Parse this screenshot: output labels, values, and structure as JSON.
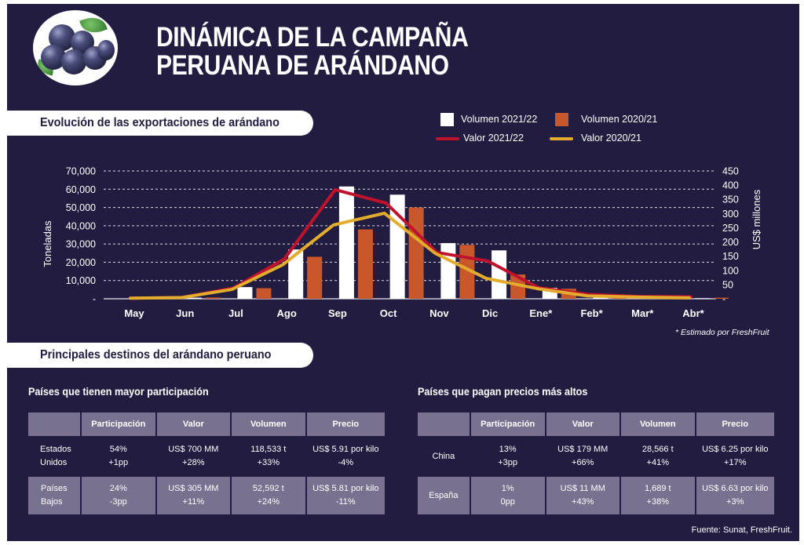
{
  "header": {
    "title_line1": "DINÁMICA DE LA CAMPAÑA",
    "title_line2": "PERUANA DE ARÁNDANO",
    "image": "blueberries-icon"
  },
  "section1": {
    "title": "Evolución de las exportaciones de arándano"
  },
  "colors": {
    "background": "#221c41",
    "vol_2122": "#ffffff",
    "vol_2021": "#c8582b",
    "val_2122": "#c0122c",
    "val_2021": "#e3ac2c",
    "grid": "#ffffff",
    "table_fill": "#7a7090"
  },
  "chart_data": {
    "type": "bar",
    "title": "Evolución de las exportaciones de arándano",
    "categories": [
      "May",
      "Jun",
      "Jul",
      "Ago",
      "Sep",
      "Oct",
      "Nov",
      "Dic",
      "Ene*",
      "Feb*",
      "Mar*",
      "Abr*"
    ],
    "series": [
      {
        "name": "Volumen 2021/22",
        "type": "bar",
        "axis": "left",
        "values": [
          200,
          600,
          6400,
          27000,
          61500,
          57000,
          30500,
          26500,
          6000,
          2000,
          500,
          300
        ]
      },
      {
        "name": "Volumen 2020/21",
        "type": "bar",
        "axis": "left",
        "values": [
          100,
          700,
          5800,
          23000,
          38000,
          50000,
          29500,
          13300,
          5500,
          600,
          200,
          600
        ]
      },
      {
        "name": "Valor 2021/22",
        "type": "line",
        "axis": "right",
        "values": [
          2,
          5,
          38,
          140,
          384,
          337,
          163,
          133,
          39,
          15,
          8,
          7
        ]
      },
      {
        "name": "Valor 2020/21",
        "type": "line",
        "axis": "right",
        "values": [
          2,
          4,
          33,
          120,
          260,
          301,
          160,
          72,
          36,
          10,
          6,
          3
        ]
      }
    ],
    "ylabel": "Toneladas",
    "ylabel_right": "US$ millones",
    "ylim": [
      0,
      70000
    ],
    "ylim_right": [
      0,
      450
    ],
    "yticks": [
      "-",
      "10,000",
      "20,000",
      "30,000",
      "40,000",
      "50,000",
      "60,000",
      "70,000"
    ],
    "yticks_right": [
      "-",
      "50",
      "100",
      "150",
      "200",
      "250",
      "300",
      "350",
      "400",
      "450"
    ],
    "grid": true,
    "legend": "top-right",
    "annotation": "* Estimado por FreshFruit"
  },
  "section2": {
    "title": "Principales destinos del arándano peruano"
  },
  "table_left": {
    "title": "Países que tienen mayor participación",
    "headers": [
      "",
      "Participación",
      "Valor",
      "Volumen",
      "Precio"
    ],
    "rows": [
      {
        "country": [
          "Estados",
          "Unidos"
        ],
        "part": [
          "54%",
          "+1pp"
        ],
        "valor": [
          "US$ 700 MM",
          "+28%"
        ],
        "volumen": [
          "118,533 t",
          "+33%"
        ],
        "precio": [
          "US$ 5.91 por kilo",
          "-4%"
        ]
      },
      {
        "country": [
          "Países",
          "Bajos"
        ],
        "part": [
          "24%",
          "-3pp"
        ],
        "valor": [
          "US$ 305 MM",
          "+11%"
        ],
        "volumen": [
          "52,592 t",
          "+24%"
        ],
        "precio": [
          "US$ 5.81 por kilo",
          "-11%"
        ]
      }
    ]
  },
  "table_right": {
    "title": "Países que pagan precios más altos",
    "headers": [
      "",
      "Participación",
      "Valor",
      "Volumen",
      "Precio"
    ],
    "rows": [
      {
        "country": [
          "China",
          ""
        ],
        "part": [
          "13%",
          "+3pp"
        ],
        "valor": [
          "US$ 179 MM",
          "+66%"
        ],
        "volumen": [
          "28,566 t",
          "+41%"
        ],
        "precio": [
          "US$ 6.25 por kilo",
          "+17%"
        ]
      },
      {
        "country": [
          "España",
          ""
        ],
        "part": [
          "1%",
          "0pp"
        ],
        "valor": [
          "US$ 11 MM",
          "+43%"
        ],
        "volumen": [
          "1,689 t",
          "+38%"
        ],
        "precio": [
          "US$ 6.63 por kilo",
          "+3%"
        ]
      }
    ]
  },
  "source": "Fuente: Sunat, FreshFruit."
}
